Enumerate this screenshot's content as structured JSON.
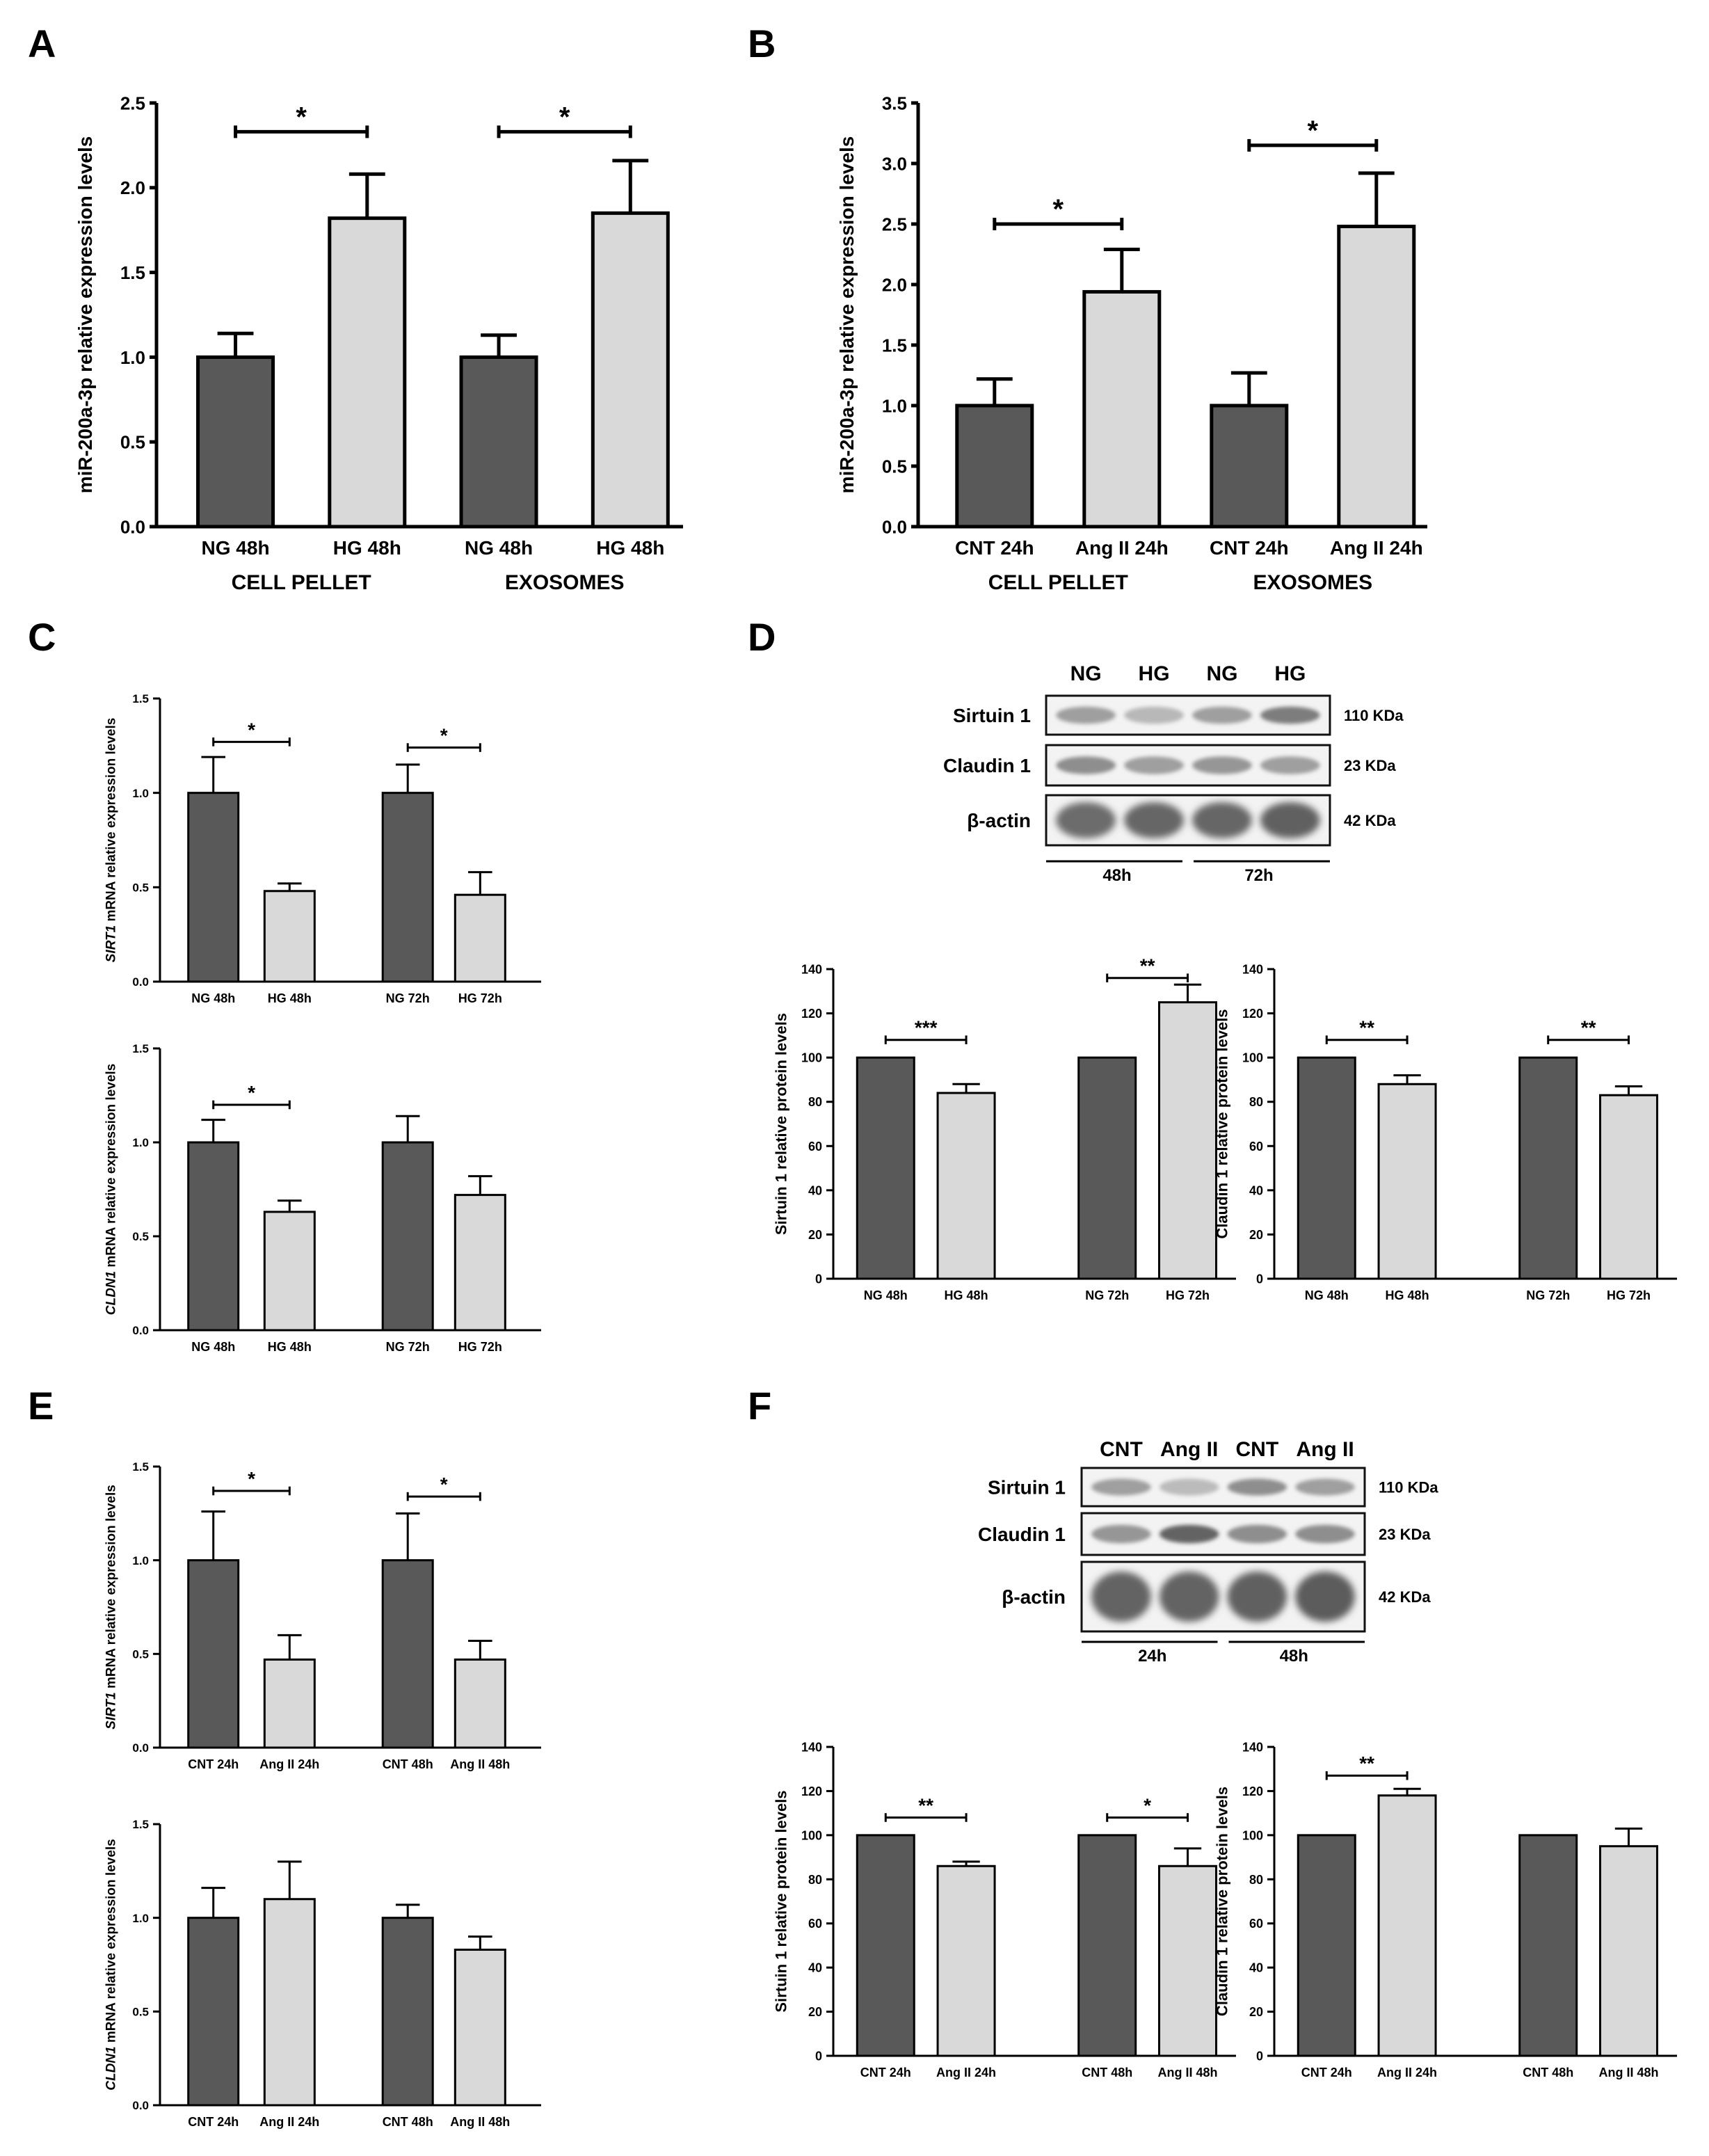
{
  "colors": {
    "dark_bar": "#595959",
    "light_bar": "#d9d9d9",
    "axis": "#000000"
  },
  "panel_labels": [
    "A",
    "B",
    "C",
    "D",
    "E",
    "F"
  ],
  "chart_data": [
    {
      "id": "A",
      "type": "bar",
      "ylabel": "miR-200a-3p relative expression levels",
      "ylim": [
        0,
        2.5
      ],
      "yticks": [
        0,
        0.5,
        1.0,
        1.5,
        2.0,
        2.5
      ],
      "tick_decimals": 1,
      "groups": [
        {
          "label": "CELL PELLET",
          "categories": [
            "NG 48h",
            "HG 48h"
          ],
          "values": [
            1.0,
            1.82
          ],
          "errors": [
            0.14,
            0.26
          ]
        },
        {
          "label": "EXOSOMES",
          "categories": [
            "NG 48h",
            "HG 48h"
          ],
          "values": [
            1.0,
            1.85
          ],
          "errors": [
            0.13,
            0.31
          ]
        }
      ],
      "sig": [
        {
          "group": 0,
          "text": "*",
          "y": 2.33
        },
        {
          "group": 1,
          "text": "*",
          "y": 2.33
        }
      ]
    },
    {
      "id": "B",
      "type": "bar",
      "ylabel": "miR-200a-3p relative expression levels",
      "ylim": [
        0,
        3.5
      ],
      "yticks": [
        0,
        0.5,
        1.0,
        1.5,
        2.0,
        2.5,
        3.0,
        3.5
      ],
      "tick_decimals": 1,
      "groups": [
        {
          "label": "CELL PELLET",
          "categories": [
            "CNT 24h",
            "Ang II 24h"
          ],
          "values": [
            1.0,
            1.94
          ],
          "errors": [
            0.22,
            0.35
          ]
        },
        {
          "label": "EXOSOMES",
          "categories": [
            "CNT 24h",
            "Ang II 24h"
          ],
          "values": [
            1.0,
            2.48
          ],
          "errors": [
            0.27,
            0.44
          ]
        }
      ],
      "sig": [
        {
          "group": 0,
          "text": "*",
          "y": 2.5
        },
        {
          "group": 1,
          "text": "*",
          "y": 3.15
        }
      ]
    },
    {
      "id": "C1",
      "type": "bar",
      "ylabel_italic": "SIRT1",
      "ylabel": " mRNA relative expression levels",
      "ylim": [
        0,
        1.5
      ],
      "yticks": [
        0,
        0.5,
        1.0,
        1.5
      ],
      "tick_decimals": 1,
      "groups": [
        {
          "categories": [
            "NG 48h",
            "HG 48h"
          ],
          "values": [
            1.0,
            0.48
          ],
          "errors": [
            0.19,
            0.04
          ]
        },
        {
          "categories": [
            "NG 72h",
            "HG 72h"
          ],
          "values": [
            1.0,
            0.46
          ],
          "errors": [
            0.15,
            0.12
          ]
        }
      ],
      "sig": [
        {
          "group": 0,
          "text": "*",
          "y": 1.27
        },
        {
          "group": 1,
          "text": "*",
          "y": 1.24
        }
      ]
    },
    {
      "id": "C2",
      "type": "bar",
      "ylabel_italic": "CLDN1",
      "ylabel": " mRNA relative expression levels",
      "ylim": [
        0,
        1.5
      ],
      "yticks": [
        0,
        0.5,
        1.0,
        1.5
      ],
      "tick_decimals": 1,
      "groups": [
        {
          "categories": [
            "NG 48h",
            "HG 48h"
          ],
          "values": [
            1.0,
            0.63
          ],
          "errors": [
            0.12,
            0.06
          ]
        },
        {
          "categories": [
            "NG 72h",
            "HG 72h"
          ],
          "values": [
            1.0,
            0.72
          ],
          "errors": [
            0.14,
            0.1
          ]
        }
      ],
      "sig": [
        {
          "group": 0,
          "text": "*",
          "y": 1.2
        }
      ]
    },
    {
      "id": "D1",
      "type": "bar",
      "ylabel": "Sirtuin 1 relative protein levels",
      "ylim": [
        0,
        140
      ],
      "yticks": [
        0,
        20,
        40,
        60,
        80,
        100,
        120,
        140
      ],
      "tick_decimals": 0,
      "groups": [
        {
          "categories": [
            "NG 48h",
            "HG 48h"
          ],
          "values": [
            100,
            84
          ],
          "errors": [
            0,
            4
          ]
        },
        {
          "categories": [
            "NG 72h",
            "HG 72h"
          ],
          "values": [
            100,
            125
          ],
          "errors": [
            0,
            8
          ]
        }
      ],
      "sig": [
        {
          "group": 0,
          "text": "***",
          "y": 108
        },
        {
          "group": 1,
          "text": "**",
          "y": 136
        }
      ]
    },
    {
      "id": "D2",
      "type": "bar",
      "ylabel": "Claudin 1 relative protein levels",
      "ylim": [
        0,
        140
      ],
      "yticks": [
        0,
        20,
        40,
        60,
        80,
        100,
        120,
        140
      ],
      "tick_decimals": 0,
      "groups": [
        {
          "categories": [
            "NG 48h",
            "HG 48h"
          ],
          "values": [
            100,
            88
          ],
          "errors": [
            0,
            4
          ]
        },
        {
          "categories": [
            "NG 72h",
            "HG 72h"
          ],
          "values": [
            100,
            83
          ],
          "errors": [
            0,
            4
          ]
        }
      ],
      "sig": [
        {
          "group": 0,
          "text": "**",
          "y": 108
        },
        {
          "group": 1,
          "text": "**",
          "y": 108
        }
      ]
    },
    {
      "id": "E1",
      "type": "bar",
      "ylabel_italic": "SIRT1",
      "ylabel": " mRNA relative expression levels",
      "ylim": [
        0,
        1.5
      ],
      "yticks": [
        0,
        0.5,
        1.0,
        1.5
      ],
      "tick_decimals": 1,
      "groups": [
        {
          "categories": [
            "CNT 24h",
            "Ang II 24h"
          ],
          "values": [
            1.0,
            0.47
          ],
          "errors": [
            0.26,
            0.13
          ]
        },
        {
          "categories": [
            "CNT 48h",
            "Ang II 48h"
          ],
          "values": [
            1.0,
            0.47
          ],
          "errors": [
            0.25,
            0.1
          ]
        }
      ],
      "sig": [
        {
          "group": 0,
          "text": "*",
          "y": 1.37
        },
        {
          "group": 1,
          "text": "*",
          "y": 1.34
        }
      ]
    },
    {
      "id": "E2",
      "type": "bar",
      "ylabel_italic": "CLDN1",
      "ylabel": " mRNA relative expression levels",
      "ylim": [
        0,
        1.5
      ],
      "yticks": [
        0,
        0.5,
        1.0,
        1.5
      ],
      "tick_decimals": 1,
      "groups": [
        {
          "categories": [
            "CNT 24h",
            "Ang II 24h"
          ],
          "values": [
            1.0,
            1.1
          ],
          "errors": [
            0.16,
            0.2
          ]
        },
        {
          "categories": [
            "CNT 48h",
            "Ang II 48h"
          ],
          "values": [
            1.0,
            0.83
          ],
          "errors": [
            0.07,
            0.07
          ]
        }
      ],
      "sig": []
    },
    {
      "id": "F1",
      "type": "bar",
      "ylabel": "Sirtuin 1 relative protein levels",
      "ylim": [
        0,
        140
      ],
      "yticks": [
        0,
        20,
        40,
        60,
        80,
        100,
        120,
        140
      ],
      "tick_decimals": 0,
      "groups": [
        {
          "categories": [
            "CNT 24h",
            "Ang II 24h"
          ],
          "values": [
            100,
            86
          ],
          "errors": [
            0,
            2
          ]
        },
        {
          "categories": [
            "CNT 48h",
            "Ang II 48h"
          ],
          "values": [
            100,
            86
          ],
          "errors": [
            0,
            8
          ]
        }
      ],
      "sig": [
        {
          "group": 0,
          "text": "**",
          "y": 108
        },
        {
          "group": 1,
          "text": "*",
          "y": 108
        }
      ]
    },
    {
      "id": "F2",
      "type": "bar",
      "ylabel": "Claudin 1 relative protein levels",
      "ylim": [
        0,
        140
      ],
      "yticks": [
        0,
        20,
        40,
        60,
        80,
        100,
        120,
        140
      ],
      "tick_decimals": 0,
      "groups": [
        {
          "categories": [
            "CNT 24h",
            "Ang II 24h"
          ],
          "values": [
            100,
            118
          ],
          "errors": [
            0,
            3
          ]
        },
        {
          "categories": [
            "CNT 48h",
            "Ang II 48h"
          ],
          "values": [
            100,
            95
          ],
          "errors": [
            0,
            8
          ]
        }
      ],
      "sig": [
        {
          "group": 0,
          "text": "**",
          "y": 127
        }
      ]
    }
  ],
  "blots": [
    {
      "id": "D",
      "lanes": [
        "NG",
        "HG",
        "NG",
        "HG"
      ],
      "rows": [
        {
          "label": "Sirtuin 1",
          "size": "110 KDa"
        },
        {
          "label": "Claudin 1",
          "size": "23 KDa"
        },
        {
          "label": "β-actin",
          "size": "42 KDa"
        }
      ],
      "times": [
        "48h",
        "72h"
      ]
    },
    {
      "id": "F",
      "lanes": [
        "CNT",
        "Ang II",
        "CNT",
        "Ang II"
      ],
      "rows": [
        {
          "label": "Sirtuin 1",
          "size": "110 KDa"
        },
        {
          "label": "Claudin 1",
          "size": "23 KDa"
        },
        {
          "label": "β-actin",
          "size": "42 KDa"
        }
      ],
      "times": [
        "24h",
        "48h"
      ]
    }
  ]
}
